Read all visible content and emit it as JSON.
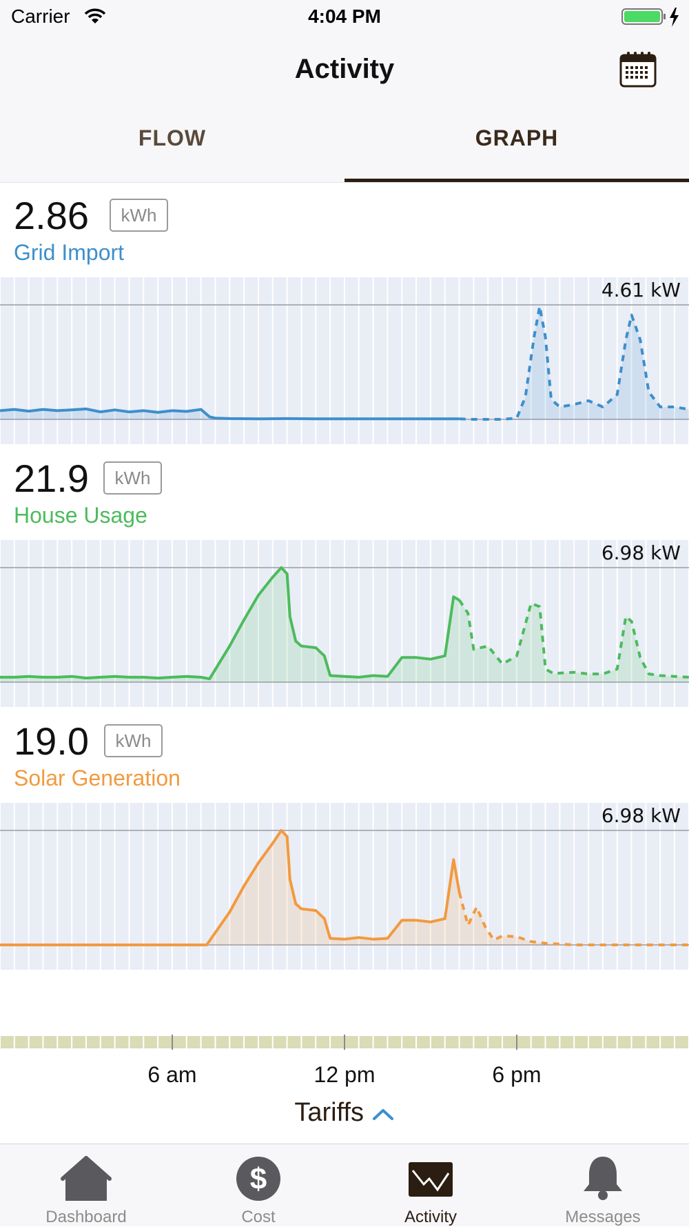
{
  "status": {
    "carrier": "Carrier",
    "time": "4:04 PM"
  },
  "nav": {
    "title": "Activity",
    "calendar_icon": "calendar-icon"
  },
  "tabs": [
    {
      "label": "FLOW",
      "active": false
    },
    {
      "label": "GRAPH",
      "active": true
    }
  ],
  "metrics": {
    "grid": {
      "value": "2.86",
      "unit": "kWh",
      "label": "Grid Import",
      "color": "#3d8fcc",
      "peak_label": "4.61 kW"
    },
    "house": {
      "value": "21.9",
      "unit": "kWh",
      "label": "House Usage",
      "color": "#4cbb5c",
      "peak_label": "6.98 kW"
    },
    "solar": {
      "value": "19.0",
      "unit": "kWh",
      "label": "Solar Generation",
      "color": "#f29a3f",
      "peak_label": "6.98 kW"
    }
  },
  "chart_data": [
    {
      "type": "area",
      "title": "Grid Import",
      "x_unit": "hour of day",
      "xlim": [
        0,
        24
      ],
      "ylim": [
        0,
        4.61
      ],
      "y_unit": "kW",
      "actual_until_hour": 16.2,
      "x": [
        0,
        0.5,
        1,
        1.5,
        2,
        2.5,
        3,
        3.5,
        4,
        4.5,
        5,
        5.5,
        6,
        6.5,
        7,
        7.3,
        7.5,
        8,
        9,
        10,
        11,
        12,
        13,
        14,
        15,
        16,
        16.5,
        17,
        17.5,
        18,
        18.3,
        18.6,
        18.8,
        19,
        19.2,
        19.5,
        20,
        20.5,
        21,
        21.5,
        21.8,
        22,
        22.3,
        22.6,
        23,
        23.5,
        24
      ],
      "y": [
        0.35,
        0.4,
        0.33,
        0.4,
        0.35,
        0.38,
        0.42,
        0.3,
        0.38,
        0.3,
        0.35,
        0.28,
        0.35,
        0.32,
        0.4,
        0.1,
        0.05,
        0.03,
        0.02,
        0.03,
        0.02,
        0.02,
        0.02,
        0.02,
        0.02,
        0.02,
        0.0,
        0.0,
        0.0,
        0.05,
        0.9,
        3.3,
        4.55,
        3.3,
        0.8,
        0.5,
        0.6,
        0.75,
        0.5,
        1.0,
        3.2,
        4.2,
        3.2,
        1.1,
        0.5,
        0.5,
        0.4
      ]
    },
    {
      "type": "area",
      "title": "House Usage",
      "x_unit": "hour of day",
      "xlim": [
        0,
        24
      ],
      "ylim": [
        0,
        6.98
      ],
      "y_unit": "kW",
      "actual_until_hour": 16.0,
      "x": [
        0,
        0.5,
        1,
        1.5,
        2,
        2.5,
        3,
        3.5,
        4,
        4.5,
        5,
        5.5,
        6,
        6.5,
        7,
        7.3,
        8,
        8.5,
        9,
        9.5,
        9.8,
        10,
        10.1,
        10.3,
        10.5,
        11,
        11.3,
        11.5,
        12,
        12.5,
        13,
        13.5,
        14,
        14.5,
        15,
        15.5,
        15.8,
        16,
        16.3,
        16.5,
        17,
        17.5,
        18,
        18.5,
        18.8,
        19,
        19.3,
        19.5,
        20,
        20.5,
        21,
        21.5,
        21.8,
        22,
        22.3,
        22.6,
        23,
        23.5,
        24
      ],
      "y": [
        0.3,
        0.3,
        0.35,
        0.3,
        0.3,
        0.35,
        0.25,
        0.3,
        0.35,
        0.3,
        0.3,
        0.25,
        0.3,
        0.35,
        0.3,
        0.2,
        2.2,
        3.8,
        5.3,
        6.4,
        6.98,
        6.6,
        4.0,
        2.5,
        2.2,
        2.1,
        1.6,
        0.4,
        0.35,
        0.3,
        0.4,
        0.35,
        1.5,
        1.5,
        1.4,
        1.6,
        5.2,
        5.0,
        4.2,
        2.0,
        2.2,
        1.1,
        1.6,
        4.8,
        4.6,
        0.8,
        0.5,
        0.55,
        0.6,
        0.5,
        0.5,
        0.8,
        4.0,
        3.7,
        1.5,
        0.5,
        0.4,
        0.35,
        0.3
      ]
    },
    {
      "type": "area",
      "title": "Solar Generation",
      "x_unit": "hour of day",
      "xlim": [
        0,
        24
      ],
      "ylim": [
        0,
        6.98
      ],
      "y_unit": "kW",
      "actual_until_hour": 16.0,
      "x": [
        0,
        1,
        2,
        3,
        4,
        5,
        6,
        7,
        7.2,
        8,
        8.5,
        9,
        9.5,
        9.8,
        10,
        10.1,
        10.3,
        10.5,
        11,
        11.3,
        11.5,
        12,
        12.5,
        13,
        13.5,
        14,
        14.5,
        15,
        15.5,
        15.8,
        16,
        16.3,
        16.6,
        16.9,
        17.2,
        17.5,
        18,
        18.5,
        19,
        19.5,
        20,
        21,
        22,
        23,
        24
      ],
      "y": [
        0,
        0,
        0,
        0,
        0,
        0,
        0,
        0,
        0,
        2.0,
        3.6,
        5.0,
        6.2,
        6.98,
        6.6,
        4.0,
        2.5,
        2.2,
        2.1,
        1.6,
        0.4,
        0.35,
        0.45,
        0.35,
        0.4,
        1.5,
        1.5,
        1.4,
        1.6,
        5.2,
        3.2,
        1.2,
        2.3,
        1.1,
        0.3,
        0.55,
        0.5,
        0.2,
        0.1,
        0.05,
        0,
        0,
        0,
        0,
        0
      ]
    }
  ],
  "time_axis": {
    "labels": [
      "6 am",
      "12 pm",
      "6 pm"
    ]
  },
  "tariffs": {
    "label": "Tariffs",
    "icon": "chevron-up-icon"
  },
  "tabbar": [
    {
      "label": "Dashboard",
      "icon": "house-icon",
      "active": false
    },
    {
      "label": "Cost",
      "icon": "dollar-icon",
      "active": false
    },
    {
      "label": "Activity",
      "icon": "activity-chart-icon",
      "active": true
    },
    {
      "label": "Messages",
      "icon": "bell-icon",
      "active": false
    }
  ],
  "colors": {
    "brand_dark": "#2b1d12",
    "chart_bg": "#e9edf6",
    "tariff_bar": "#d9dcb5",
    "accent_blue": "#3a8fd0"
  }
}
